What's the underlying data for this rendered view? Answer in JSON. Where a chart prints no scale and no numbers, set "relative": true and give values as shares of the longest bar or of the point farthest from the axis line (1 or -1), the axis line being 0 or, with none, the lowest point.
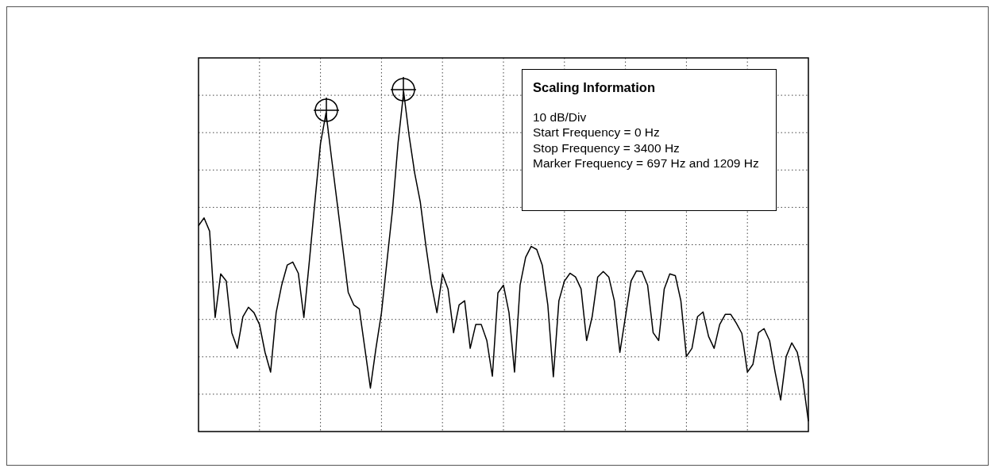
{
  "chart_data": {
    "type": "line",
    "relative": true,
    "grid": true,
    "categories": [
      null,
      null,
      null,
      null,
      null,
      null,
      null,
      null,
      null,
      null,
      null,
      null,
      null,
      null,
      null,
      null,
      null,
      null,
      null,
      null,
      null,
      null,
      null,
      null,
      null,
      null,
      null,
      null,
      null,
      null,
      null,
      null,
      null,
      null,
      null,
      null,
      null,
      null,
      null,
      null,
      null,
      null,
      null,
      null,
      null,
      null,
      null,
      null,
      null,
      null,
      null,
      null,
      null,
      null,
      null,
      null,
      null,
      null,
      null,
      null,
      null,
      null,
      null,
      null,
      null,
      null,
      null,
      null,
      null,
      null,
      null,
      null,
      null,
      null,
      null,
      null,
      null,
      null,
      null,
      null,
      null,
      null,
      null,
      null,
      null,
      null,
      null,
      null,
      null,
      null,
      null,
      null,
      null,
      null,
      null,
      null,
      null,
      null,
      null,
      null,
      null,
      null,
      null,
      null,
      null,
      null,
      null,
      null,
      null,
      null,
      null
    ],
    "series": [
      {
        "color": "#000000",
        "values": [
          0.606,
          0.629,
          0.59,
          0.336,
          0.464,
          0.443,
          0.291,
          0.245,
          0.338,
          0.366,
          0.35,
          0.315,
          0.233,
          0.175,
          0.35,
          0.431,
          0.49,
          0.499,
          0.466,
          0.336,
          0.503,
          0.678,
          0.848,
          0.938,
          0.804,
          0.674,
          0.543,
          0.41,
          0.373,
          0.361,
          0.245,
          0.128,
          0.245,
          0.35,
          0.503,
          0.655,
          0.851,
          1,
          0.869,
          0.76,
          0.676,
          0.548,
          0.434,
          0.35,
          0.464,
          0.42,
          0.291,
          0.373,
          0.385,
          0.245,
          0.315,
          0.315,
          0.268,
          0.163,
          0.408,
          0.431,
          0.35,
          0.175,
          0.431,
          0.513,
          0.545,
          0.536,
          0.49,
          0.373,
          0.161,
          0.385,
          0.443,
          0.466,
          0.455,
          0.42,
          0.268,
          0.338,
          0.455,
          0.471,
          0.455,
          0.385,
          0.233,
          0.338,
          0.443,
          0.473,
          0.471,
          0.431,
          0.291,
          0.268,
          0.42,
          0.464,
          0.459,
          0.385,
          0.221,
          0.245,
          0.338,
          0.352,
          0.28,
          0.245,
          0.315,
          0.345,
          0.345,
          0.319,
          0.289,
          0.175,
          0.198,
          0.291,
          0.303,
          0.268,
          0.175,
          0.093,
          0.221,
          0.261,
          0.233,
          0.152,
          0.03
        ]
      }
    ],
    "annotations": [
      "Scaling Information",
      "10 dB/Div",
      "Start Frequency = 0 Hz",
      "Stop Frequency = 3400 Hz",
      "Marker Frequency = 697 Hz and 1209 Hz"
    ]
  }
}
